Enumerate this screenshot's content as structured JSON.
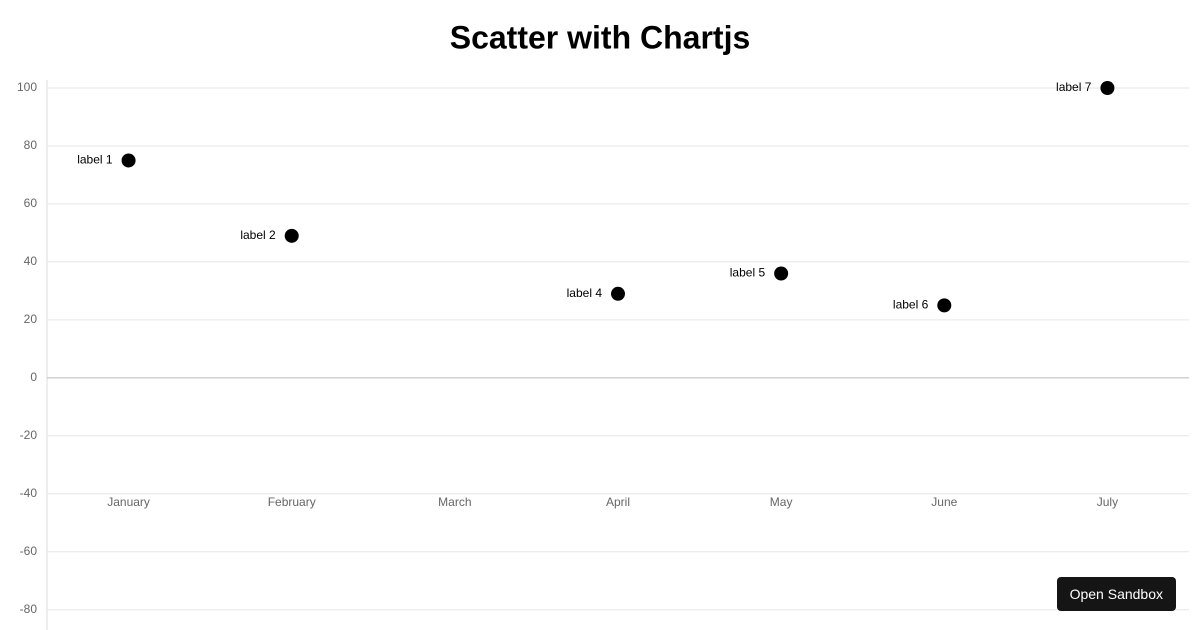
{
  "chart_data": {
    "type": "scatter",
    "title": "Scatter with Chartjs",
    "categories": [
      "January",
      "February",
      "March",
      "April",
      "May",
      "June",
      "July"
    ],
    "values": [
      75,
      49,
      null,
      29,
      36,
      25,
      100
    ],
    "point_labels": [
      "label 1",
      "label 2",
      null,
      "label 4",
      "label 5",
      "label 6",
      "label 7"
    ],
    "color": "#000000",
    "ylim": [
      -87,
      100
    ],
    "yticks": [
      -80,
      -60,
      -40,
      -20,
      0,
      20,
      40,
      60,
      80,
      100
    ],
    "grid": true
  },
  "button": "Open Sandbox"
}
